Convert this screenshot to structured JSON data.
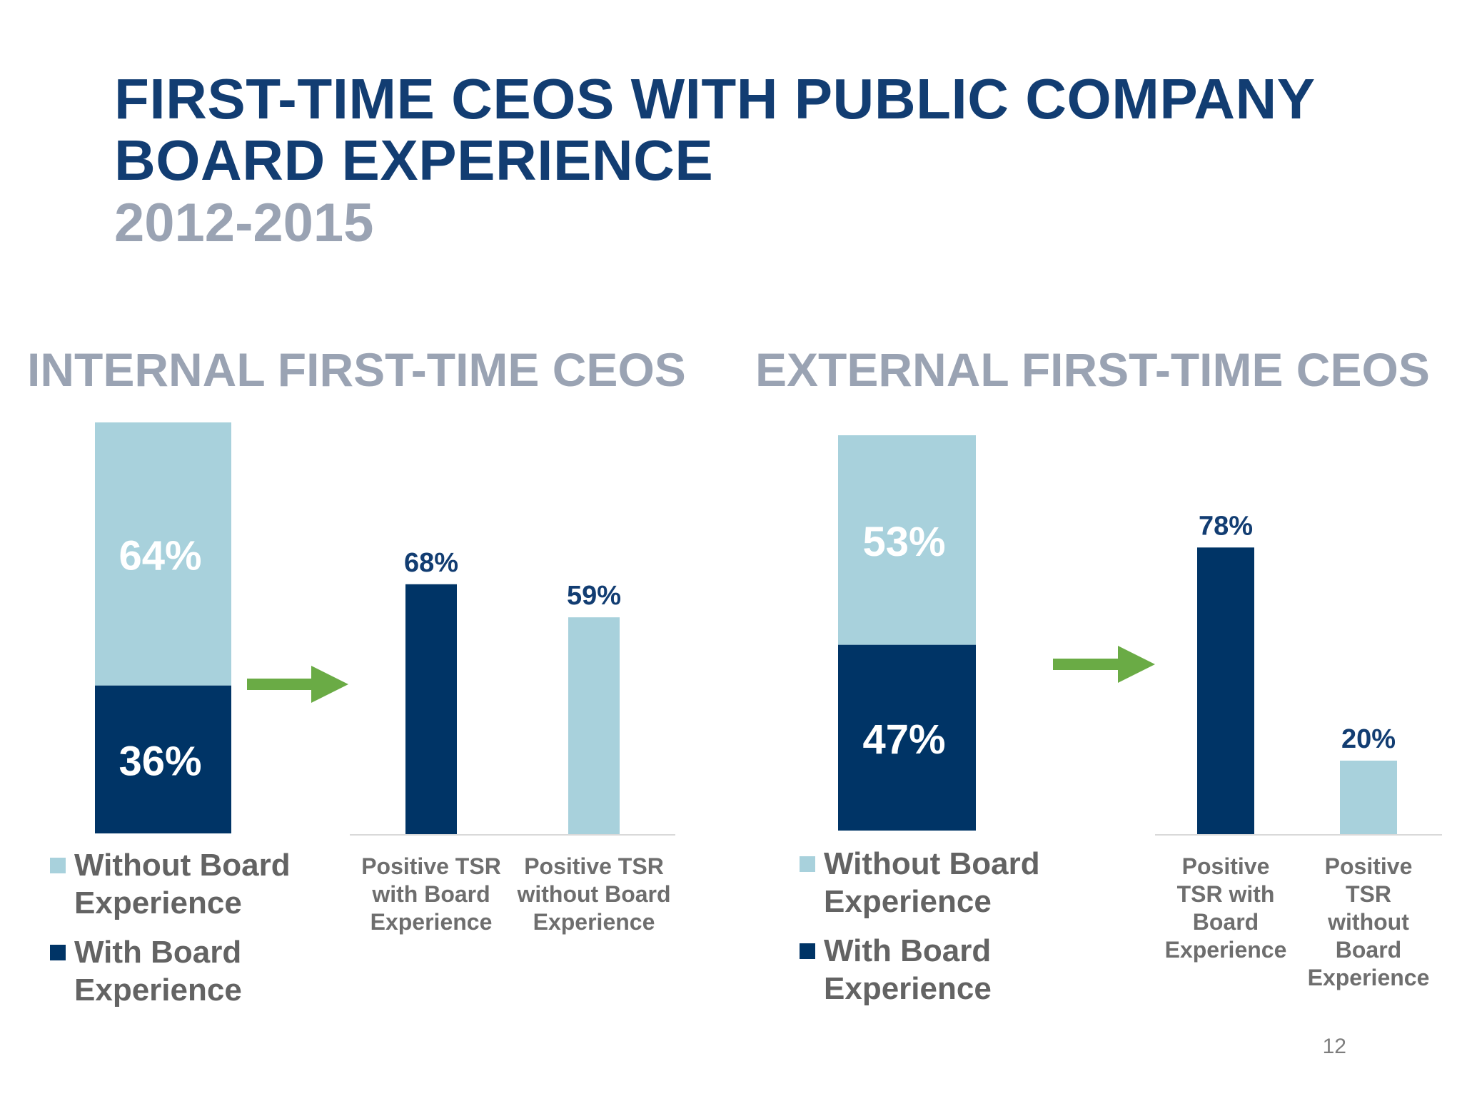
{
  "title": {
    "line1": "FIRST-TIME CEOS WITH PUBLIC COMPANY",
    "line2": "BOARD EXPERIENCE",
    "years": "2012-2015"
  },
  "colors": {
    "dark_navy": "#003466",
    "light_blue": "#a8d1dc",
    "arrow_green": "#6aab45"
  },
  "icons": [
    "right-arrow-icon",
    "right-arrow-icon"
  ],
  "page_number": "12",
  "chart_data": [
    {
      "type": "bar",
      "subtype": "stacked",
      "title": "INTERNAL FIRST-TIME CEOS",
      "categories": [
        ""
      ],
      "series": [
        {
          "name": "With Board Experience",
          "values": [
            36
          ],
          "labels": [
            "36%"
          ],
          "color": "#003466"
        },
        {
          "name": "Without Board Experience",
          "values": [
            64
          ],
          "labels": [
            "64%"
          ],
          "color": "#a8d1dc"
        }
      ],
      "legend": [
        "Without Board Experience",
        "With Board Experience"
      ],
      "legend_position": "bottom"
    },
    {
      "type": "bar",
      "title": "",
      "categories": [
        "Positive TSR with Board Experience",
        "Positive TSR without Board Experience"
      ],
      "values": [
        68,
        59
      ],
      "labels": [
        "68%",
        "59%"
      ],
      "colors": [
        "#003466",
        "#a8d1dc"
      ],
      "ylim": [
        0,
        100
      ]
    },
    {
      "type": "bar",
      "subtype": "stacked",
      "title": "EXTERNAL FIRST-TIME CEOS",
      "categories": [
        ""
      ],
      "series": [
        {
          "name": "With Board Experience",
          "values": [
            47
          ],
          "labels": [
            "47%"
          ],
          "color": "#003466"
        },
        {
          "name": "Without Board Experience",
          "values": [
            53
          ],
          "labels": [
            "53%"
          ],
          "color": "#a8d1dc"
        }
      ],
      "legend": [
        "Without Board Experience",
        "With Board Experience"
      ],
      "legend_position": "bottom"
    },
    {
      "type": "bar",
      "title": "",
      "categories": [
        "Positive TSR with Board Experience",
        "Positive TSR without Board Experience"
      ],
      "values": [
        78,
        20
      ],
      "labels": [
        "78%",
        "20%"
      ],
      "colors": [
        "#003466",
        "#a8d1dc"
      ],
      "ylim": [
        0,
        100
      ]
    }
  ]
}
